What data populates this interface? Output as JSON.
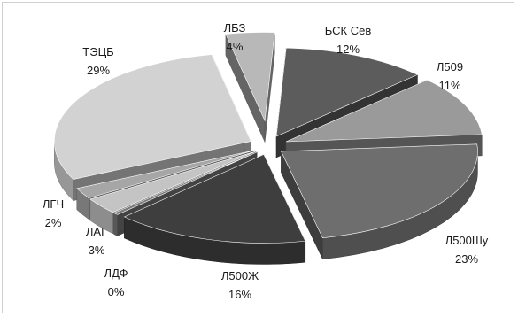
{
  "chart_data": {
    "type": "pie",
    "style": "3d-exploded",
    "slices": [
      {
        "name": "БСК Сев",
        "percent_label": "12%",
        "value": 12,
        "color": "#5c5c5c"
      },
      {
        "name": "Л509",
        "percent_label": "11%",
        "value": 11,
        "color": "#9a9a9a"
      },
      {
        "name": "Л500Шу",
        "percent_label": "23%",
        "value": 23,
        "color": "#6e6e6e"
      },
      {
        "name": "Л500Ж",
        "percent_label": "16%",
        "value": 16,
        "color": "#3e3e3e"
      },
      {
        "name": "ЛДФ",
        "percent_label": "0%",
        "value": 0.4,
        "color": "#7a7a7a"
      },
      {
        "name": "ЛАГ",
        "percent_label": "3%",
        "value": 3,
        "color": "#c4c4c4"
      },
      {
        "name": "ЛГЧ",
        "percent_label": "2%",
        "value": 2,
        "color": "#a6a6a6"
      },
      {
        "name": "ТЭЦБ",
        "percent_label": "29%",
        "value": 29,
        "color": "#d2d2d2"
      },
      {
        "name": "ЛБЗ",
        "percent_label": "4%",
        "value": 4,
        "color": "#b8b8b8"
      }
    ]
  }
}
